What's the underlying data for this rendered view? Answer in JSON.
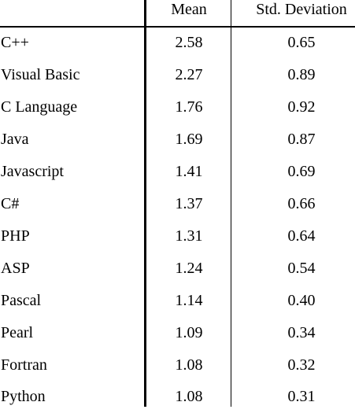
{
  "table": {
    "headers": {
      "language": "",
      "mean": "Mean",
      "std_dev": "Std. Deviation"
    },
    "rows": [
      {
        "language": "C++",
        "mean": "2.58",
        "std_dev": "0.65"
      },
      {
        "language": "Visual Basic",
        "mean": "2.27",
        "std_dev": "0.89"
      },
      {
        "language": "C Language",
        "mean": "1.76",
        "std_dev": "0.92"
      },
      {
        "language": "Java",
        "mean": "1.69",
        "std_dev": "0.87"
      },
      {
        "language": "Javascript",
        "mean": "1.41",
        "std_dev": "0.69"
      },
      {
        "language": "C#",
        "mean": "1.37",
        "std_dev": "0.66"
      },
      {
        "language": "PHP",
        "mean": "1.31",
        "std_dev": "0.64"
      },
      {
        "language": "ASP",
        "mean": "1.24",
        "std_dev": "0.54"
      },
      {
        "language": "Pascal",
        "mean": "1.14",
        "std_dev": "0.40"
      },
      {
        "language": "Pearl",
        "mean": "1.09",
        "std_dev": "0.34"
      },
      {
        "language": "Fortran",
        "mean": "1.08",
        "std_dev": "0.32"
      },
      {
        "language": "Python",
        "mean": "1.08",
        "std_dev": "0.31"
      }
    ]
  }
}
